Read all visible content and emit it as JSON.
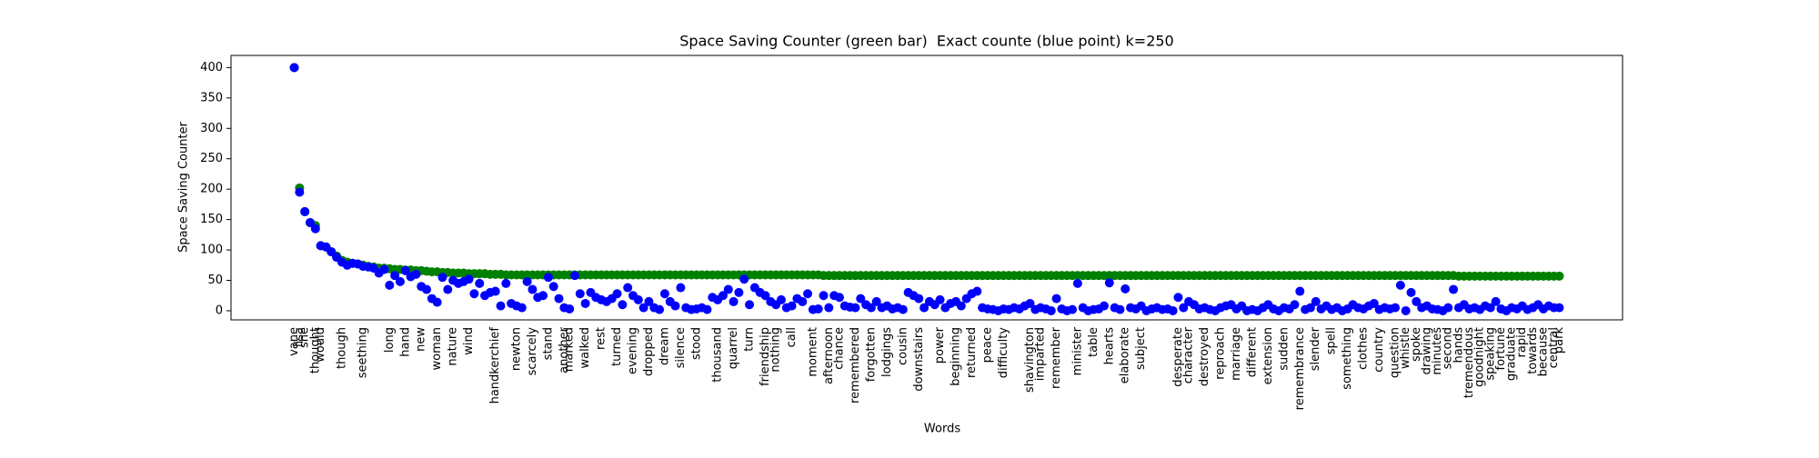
{
  "chart_data": {
    "type": "scatter",
    "title": "Space Saving Counter (green bar)  Exact counte (blue point) k=250",
    "xlabel": "Words",
    "ylabel": "Space Saving Counter",
    "ylim": [
      -15,
      420
    ],
    "yticks": [
      0,
      50,
      100,
      150,
      200,
      250,
      300,
      350,
      400
    ],
    "categories": [
      "vane",
      "lisa",
      "she",
      null,
      "thought",
      "would",
      null,
      null,
      null,
      "though",
      null,
      null,
      null,
      "seething",
      null,
      null,
      null,
      null,
      "long",
      null,
      null,
      "hand",
      null,
      null,
      "new",
      null,
      null,
      "woman",
      null,
      null,
      "nature",
      null,
      null,
      "wind",
      null,
      null,
      null,
      null,
      "handkerchief",
      null,
      null,
      null,
      "newton",
      null,
      null,
      "scarcely",
      null,
      null,
      "stand",
      null,
      null,
      "another",
      "marked",
      null,
      null,
      "walked",
      null,
      null,
      "rest",
      null,
      null,
      "turned",
      null,
      null,
      "evening",
      null,
      null,
      "dropped",
      null,
      null,
      "dream",
      null,
      null,
      "silence",
      null,
      null,
      "stood",
      null,
      null,
      null,
      "thousand",
      null,
      null,
      "quarrel",
      null,
      null,
      "turn",
      null,
      null,
      "friendship",
      null,
      "nothing",
      null,
      null,
      "call",
      null,
      null,
      null,
      "moment",
      null,
      null,
      "afternoon",
      null,
      "chance",
      null,
      null,
      "remembered",
      null,
      null,
      "forgotten",
      null,
      null,
      "lodgings",
      null,
      null,
      "cousin",
      null,
      null,
      "downstairs",
      null,
      null,
      null,
      "power",
      null,
      null,
      "beginning",
      null,
      null,
      "returned",
      null,
      null,
      "peace",
      null,
      null,
      "difficulty",
      null,
      null,
      null,
      null,
      "shavington",
      null,
      "imparted",
      null,
      null,
      "remember",
      null,
      null,
      null,
      "minister",
      null,
      null,
      "table",
      null,
      null,
      "hearts",
      null,
      null,
      "elaborate",
      null,
      null,
      "subject",
      null,
      null,
      null,
      null,
      null,
      null,
      "desperate",
      null,
      "character",
      null,
      null,
      "destroyed",
      null,
      null,
      "reproach",
      null,
      null,
      "marriage",
      null,
      null,
      "different",
      null,
      null,
      "extension",
      null,
      null,
      "sudden",
      null,
      null,
      "remembrance",
      null,
      null,
      "slender",
      null,
      null,
      "spell",
      null,
      null,
      "something",
      null,
      null,
      "clothes",
      null,
      null,
      "country",
      null,
      null,
      "question",
      null,
      "whistle",
      null,
      "spoke",
      null,
      "drawing",
      null,
      "minutes",
      null,
      "second",
      null,
      "hands",
      null,
      "tremendous",
      null,
      "goodnight",
      null,
      "speaking",
      null,
      "fortune",
      null,
      "graduate",
      null,
      "rapid",
      null,
      "towards",
      null,
      "because",
      null,
      "central",
      "park"
    ],
    "series": [
      {
        "color": "green",
        "values": [
          400,
          202,
          163,
          145,
          140,
          107,
          105,
          97,
          90,
          83,
          80,
          78,
          77,
          75,
          73,
          72,
          70,
          70,
          69,
          68,
          68,
          67,
          67,
          66,
          66,
          65,
          64,
          64,
          63,
          63,
          62,
          62,
          62,
          61,
          61,
          61,
          61,
          60,
          60,
          60,
          59,
          59,
          59,
          59,
          59,
          59,
          59,
          59,
          59,
          59,
          59,
          59,
          59,
          59,
          59,
          59,
          59,
          59,
          59,
          59,
          59,
          59,
          59,
          59,
          59,
          59,
          59,
          59,
          59,
          59,
          59,
          59,
          59,
          59,
          59,
          59,
          59,
          59,
          59,
          59,
          59,
          59,
          59,
          59,
          59,
          59,
          59,
          59,
          59,
          59,
          59,
          59,
          59,
          59,
          59,
          59,
          59,
          59,
          59,
          59,
          58,
          58,
          58,
          58,
          58,
          58,
          58,
          58,
          58,
          58,
          58,
          58,
          58,
          58,
          58,
          58,
          58,
          58,
          58,
          58,
          58,
          58,
          58,
          58,
          58,
          58,
          58,
          58,
          58,
          58,
          58,
          58,
          58,
          58,
          58,
          58,
          58,
          58,
          58,
          58,
          58,
          58,
          58,
          58,
          58,
          58,
          58,
          58,
          58,
          58,
          58,
          58,
          58,
          58,
          58,
          58,
          58,
          58,
          58,
          58,
          58,
          58,
          58,
          58,
          58,
          58,
          58,
          58,
          58,
          58,
          58,
          58,
          58,
          58,
          58,
          58,
          58,
          58,
          58,
          58,
          58,
          58,
          58,
          58,
          58,
          58,
          58,
          58,
          58,
          58,
          58,
          58,
          58,
          58,
          58,
          58,
          58,
          58,
          58,
          58,
          58,
          58,
          58,
          58,
          58,
          58,
          58,
          58,
          58,
          58,
          58,
          58,
          58,
          58,
          58,
          58,
          58,
          58,
          58,
          58,
          57,
          57,
          57,
          57,
          57,
          57,
          57,
          57,
          57,
          57,
          57,
          57,
          57,
          57,
          57,
          57,
          57,
          57,
          57,
          57
        ]
      },
      {
        "color": "blue",
        "values": [
          400,
          195,
          163,
          145,
          135,
          107,
          105,
          97,
          88,
          80,
          75,
          78,
          77,
          73,
          72,
          70,
          62,
          68,
          42,
          58,
          48,
          66,
          56,
          60,
          40,
          35,
          20,
          14,
          55,
          35,
          50,
          45,
          48,
          52,
          28,
          45,
          25,
          30,
          32,
          8,
          45,
          12,
          8,
          5,
          48,
          35,
          22,
          25,
          55,
          40,
          20,
          5,
          3,
          58,
          28,
          12,
          30,
          22,
          18,
          15,
          20,
          28,
          10,
          38,
          25,
          18,
          5,
          15,
          5,
          2,
          28,
          15,
          8,
          38,
          5,
          2,
          3,
          5,
          2,
          22,
          18,
          25,
          35,
          15,
          30,
          52,
          10,
          38,
          30,
          25,
          15,
          10,
          18,
          5,
          8,
          20,
          15,
          28,
          2,
          3,
          25,
          5,
          25,
          22,
          8,
          6,
          5,
          20,
          10,
          5,
          15,
          5,
          8,
          3,
          5,
          2,
          30,
          25,
          20,
          5,
          15,
          10,
          18,
          5,
          12,
          15,
          8,
          20,
          28,
          32,
          5,
          3,
          2,
          0,
          3,
          2,
          5,
          3,
          8,
          12,
          2,
          5,
          3,
          0,
          20,
          3,
          0,
          2,
          45,
          5,
          0,
          2,
          3,
          8,
          46,
          5,
          2,
          36,
          5,
          3,
          8,
          0,
          3,
          5,
          2,
          3,
          0,
          22,
          5,
          15,
          10,
          3,
          5,
          2,
          0,
          5,
          8,
          10,
          3,
          8,
          0,
          2,
          0,
          5,
          10,
          3,
          0,
          5,
          3,
          10,
          32,
          2,
          5,
          15,
          3,
          8,
          2,
          5,
          0,
          3,
          10,
          5,
          3,
          8,
          12,
          2,
          5,
          3,
          5,
          42,
          0,
          30,
          15,
          5,
          8,
          3,
          2,
          0,
          5,
          35,
          5,
          10,
          3,
          5,
          2,
          8,
          5,
          15,
          3,
          0,
          5,
          3,
          8,
          2,
          5,
          10,
          3,
          8,
          5,
          5
        ]
      }
    ]
  }
}
